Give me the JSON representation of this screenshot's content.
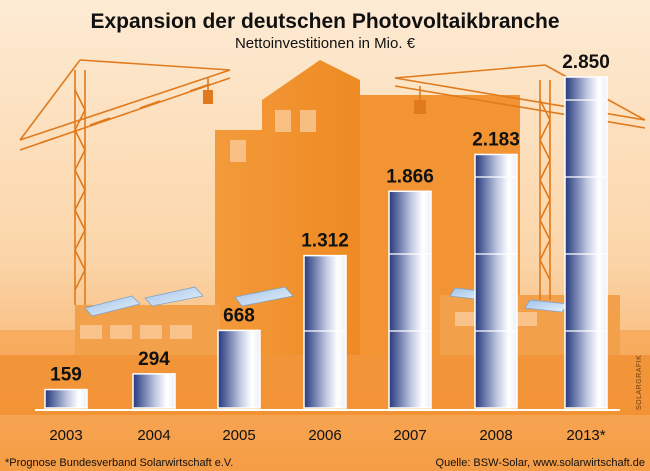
{
  "chart_data": {
    "type": "bar",
    "title": "Expansion der deutschen Photovoltaikbranche",
    "subtitle": "Nettoinvestitionen in Mio. €",
    "categories": [
      "2003",
      "2004",
      "2005",
      "2006",
      "2007",
      "2008",
      "2013*"
    ],
    "values": [
      159,
      294,
      668,
      1312,
      1866,
      2183,
      2850
    ],
    "value_labels": [
      "159",
      "294",
      "668",
      "1.312",
      "1.866",
      "2.183",
      "2.850"
    ],
    "xlabel": "",
    "ylabel": "",
    "ylim": [
      0,
      2850
    ],
    "grid": false,
    "legend": "none"
  },
  "footnote": "*Prognose Bundesverband Solarwirtschaft e.V.",
  "source": "Quelle: BSW-Solar, www.solarwirtschaft.de",
  "credit": "SOLARGRAFIK",
  "colors": {
    "background_light": "#fce8cf",
    "background_orange": "#f6a04a",
    "building": "#f08a24",
    "bar_dark": "#2a3f84",
    "bar_light": "#ffffff",
    "baseline": "#ffffff"
  }
}
